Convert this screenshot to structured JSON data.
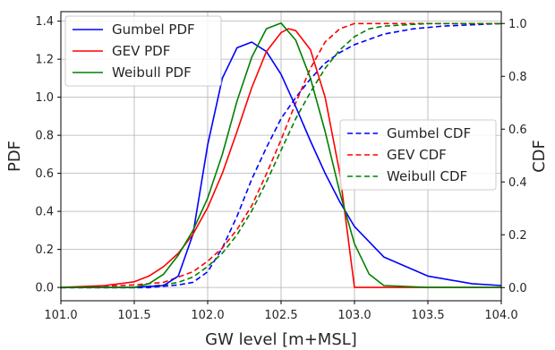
{
  "chart_data": {
    "type": "line",
    "title": "",
    "xlabel": "GW level [m+MSL]",
    "ylabel_left": "PDF",
    "ylabel_right": "CDF",
    "xlim": [
      101.0,
      104.0
    ],
    "ylim_left": [
      -0.07,
      1.45
    ],
    "ylim_right": [
      -0.05,
      1.045
    ],
    "xticks": [
      101.0,
      101.5,
      102.0,
      102.5,
      103.0,
      103.5,
      104.0
    ],
    "yticks_left": [
      0.0,
      0.2,
      0.4,
      0.6,
      0.8,
      1.0,
      1.2,
      1.4
    ],
    "yticks_right": [
      0.0,
      0.2,
      0.4,
      0.6,
      0.8,
      1.0
    ],
    "grid": true,
    "legend_pdf_position": "top-left",
    "legend_cdf_position": "center-right",
    "series": [
      {
        "name": "Gumbel PDF",
        "axis": "left",
        "style": "solid",
        "color": "#0000ff",
        "x": [
          101.0,
          101.5,
          101.7,
          101.8,
          101.9,
          102.0,
          102.1,
          102.2,
          102.3,
          102.4,
          102.5,
          102.6,
          102.7,
          102.8,
          102.9,
          103.0,
          103.2,
          103.5,
          103.8,
          104.0
        ],
        "y": [
          0.0,
          0.0,
          0.01,
          0.06,
          0.28,
          0.75,
          1.1,
          1.26,
          1.29,
          1.24,
          1.12,
          0.95,
          0.77,
          0.6,
          0.45,
          0.32,
          0.16,
          0.06,
          0.02,
          0.01
        ]
      },
      {
        "name": "GEV PDF",
        "axis": "left",
        "style": "solid",
        "color": "#ff0000",
        "x": [
          101.0,
          101.3,
          101.5,
          101.6,
          101.7,
          101.8,
          101.9,
          102.0,
          102.1,
          102.2,
          102.3,
          102.4,
          102.5,
          102.55,
          102.6,
          102.7,
          102.8,
          102.9,
          102.95,
          103.0,
          103.5,
          104.0
        ],
        "y": [
          0.0,
          0.01,
          0.03,
          0.06,
          0.11,
          0.18,
          0.28,
          0.42,
          0.6,
          0.82,
          1.05,
          1.24,
          1.34,
          1.36,
          1.35,
          1.25,
          1.0,
          0.6,
          0.3,
          0.0,
          0.0,
          0.0
        ]
      },
      {
        "name": "Weibull PDF",
        "axis": "left",
        "style": "solid",
        "color": "#008000",
        "x": [
          101.0,
          101.5,
          101.6,
          101.7,
          101.8,
          101.9,
          102.0,
          102.1,
          102.2,
          102.3,
          102.4,
          102.5,
          102.6,
          102.7,
          102.8,
          102.9,
          103.0,
          103.1,
          103.2,
          103.5,
          104.0
        ],
        "y": [
          0.0,
          0.0,
          0.02,
          0.07,
          0.17,
          0.3,
          0.47,
          0.7,
          0.98,
          1.21,
          1.36,
          1.39,
          1.3,
          1.1,
          0.82,
          0.5,
          0.23,
          0.07,
          0.01,
          0.0,
          0.0
        ]
      },
      {
        "name": "Gumbel CDF",
        "axis": "right",
        "style": "dashed",
        "color": "#0000ff",
        "x": [
          101.0,
          101.6,
          101.8,
          101.9,
          102.0,
          102.1,
          102.2,
          102.3,
          102.4,
          102.5,
          102.6,
          102.7,
          102.8,
          102.9,
          103.0,
          103.2,
          103.4,
          103.6,
          103.8,
          104.0
        ],
        "y": [
          0.0,
          0.0,
          0.01,
          0.02,
          0.06,
          0.15,
          0.27,
          0.41,
          0.53,
          0.64,
          0.72,
          0.79,
          0.85,
          0.89,
          0.92,
          0.96,
          0.98,
          0.99,
          0.995,
          1.0
        ]
      },
      {
        "name": "GEV CDF",
        "axis": "right",
        "style": "dashed",
        "color": "#ff0000",
        "x": [
          101.0,
          101.5,
          101.7,
          101.8,
          101.9,
          102.0,
          102.1,
          102.2,
          102.3,
          102.4,
          102.5,
          102.6,
          102.7,
          102.8,
          102.9,
          103.0,
          103.5,
          104.0
        ],
        "y": [
          0.0,
          0.01,
          0.02,
          0.04,
          0.06,
          0.1,
          0.15,
          0.22,
          0.31,
          0.43,
          0.56,
          0.7,
          0.83,
          0.93,
          0.98,
          1.0,
          1.0,
          1.0
        ]
      },
      {
        "name": "Weibull CDF",
        "axis": "right",
        "style": "dashed",
        "color": "#008000",
        "x": [
          101.0,
          101.5,
          101.7,
          101.8,
          101.9,
          102.0,
          102.1,
          102.2,
          102.3,
          102.4,
          102.5,
          102.6,
          102.7,
          102.8,
          102.9,
          103.0,
          103.1,
          103.2,
          103.5,
          104.0
        ],
        "y": [
          0.0,
          0.0,
          0.01,
          0.02,
          0.04,
          0.08,
          0.13,
          0.2,
          0.29,
          0.4,
          0.52,
          0.64,
          0.74,
          0.83,
          0.9,
          0.95,
          0.98,
          0.99,
          1.0,
          1.0
        ]
      }
    ]
  }
}
